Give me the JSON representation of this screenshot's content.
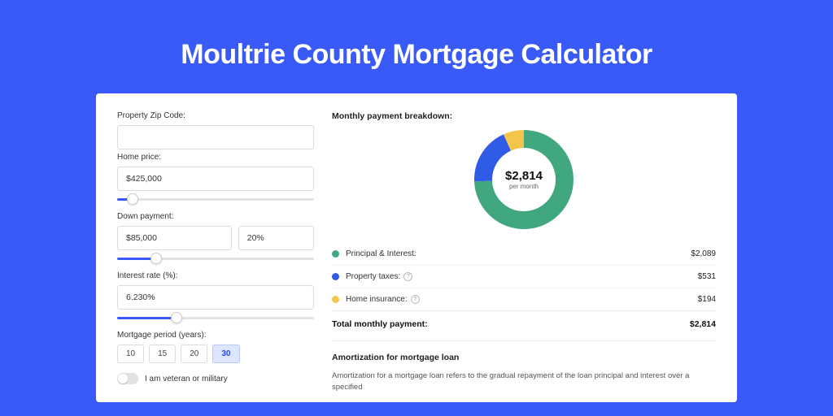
{
  "page": {
    "title": "Moultrie County Mortgage Calculator",
    "accent_color": "#3a5af7",
    "card_bg": "#ffffff"
  },
  "form": {
    "zip": {
      "label": "Property Zip Code:",
      "value": ""
    },
    "price": {
      "label": "Home price:",
      "value": "$425,000",
      "slider_pct": 8
    },
    "down": {
      "label": "Down payment:",
      "value": "$85,000",
      "pct": "20%",
      "slider_pct": 20
    },
    "rate": {
      "label": "Interest rate (%):",
      "value": "6.230%",
      "slider_pct": 30
    },
    "period": {
      "label": "Mortgage period (years):",
      "options": [
        "10",
        "15",
        "20",
        "30"
      ],
      "selected": "30"
    },
    "veteran": {
      "label": "I am veteran or military",
      "checked": false
    }
  },
  "breakdown": {
    "title": "Monthly payment breakdown:",
    "total": {
      "amount": "$2,814",
      "unit": "per month"
    },
    "items": [
      {
        "name": "Principal & Interest:",
        "value": "$2,089",
        "num": 2089,
        "color": "#41a77f",
        "help": false
      },
      {
        "name": "Property taxes:",
        "value": "$531",
        "num": 531,
        "color": "#2f5be6",
        "help": true
      },
      {
        "name": "Home insurance:",
        "value": "$194",
        "num": 194,
        "color": "#f3c64b",
        "help": true
      }
    ],
    "total_row": {
      "label": "Total monthly payment:",
      "value": "$2,814"
    }
  },
  "donut": {
    "radius": 50,
    "stroke": 22,
    "bg": "#ffffff"
  },
  "amortization": {
    "title": "Amortization for mortgage loan",
    "body": "Amortization for a mortgage loan refers to the gradual repayment of the loan principal and interest over a specified"
  }
}
